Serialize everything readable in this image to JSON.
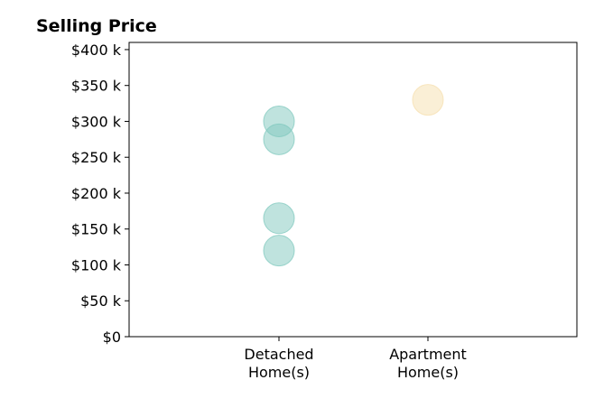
{
  "chart_data": {
    "type": "scatter",
    "title": "Selling Price",
    "xlabel": "",
    "ylabel": "",
    "categories": [
      "Detached\nHome(s)",
      "Apartment\nHome(s)"
    ],
    "ylim": [
      0,
      410000
    ],
    "yticks": [
      {
        "value": 0,
        "label": "$0"
      },
      {
        "value": 50000,
        "label": "$50 k"
      },
      {
        "value": 100000,
        "label": "$100 k"
      },
      {
        "value": 150000,
        "label": "$150 k"
      },
      {
        "value": 200000,
        "label": "$200 k"
      },
      {
        "value": 250000,
        "label": "$250 k"
      },
      {
        "value": 300000,
        "label": "$300 k"
      },
      {
        "value": 350000,
        "label": "$350 k"
      },
      {
        "value": 400000,
        "label": "$400 k"
      }
    ],
    "grid": false,
    "legend": "none",
    "series": [
      {
        "category": 0,
        "color": "#7fc8bd",
        "values": [
          300000,
          275000,
          165000,
          120000
        ]
      },
      {
        "category": 1,
        "color": "#f5dfae",
        "values": [
          330000
        ]
      }
    ]
  }
}
